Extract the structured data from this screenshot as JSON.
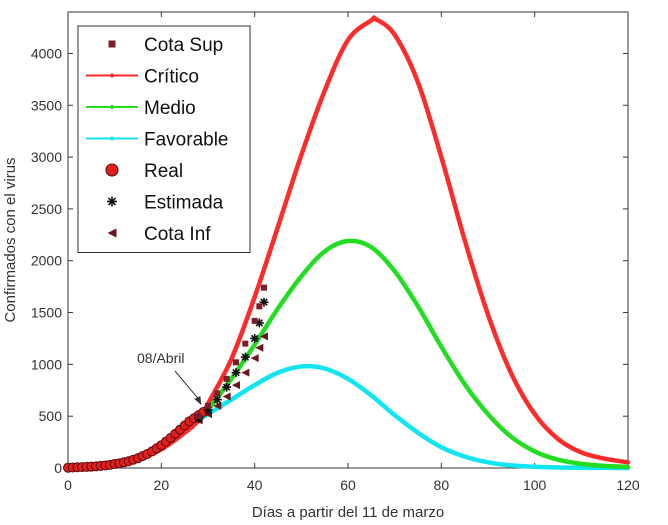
{
  "chart_data": {
    "type": "line",
    "title": "",
    "xlabel": "Días a partir del 11 de marzo",
    "ylabel": "Confirmados con el virus",
    "xlim": [
      0,
      120
    ],
    "ylim": [
      0,
      4400
    ],
    "x_ticks": [
      0,
      20,
      40,
      60,
      80,
      100,
      120
    ],
    "y_ticks": [
      0,
      500,
      1000,
      1500,
      2000,
      2500,
      3000,
      3500,
      4000
    ],
    "grid": false,
    "legend_position": "top-left",
    "legend": [
      {
        "label": "Cota Sup",
        "marker": "square",
        "color": "#7a1f2b"
      },
      {
        "label": "Crítico",
        "marker": "line",
        "color": "#ff2b2b"
      },
      {
        "label": "Medio",
        "marker": "line",
        "color": "#22dd22"
      },
      {
        "label": "Favorable",
        "marker": "line",
        "color": "#11e5ef"
      },
      {
        "label": "Real",
        "marker": "circle",
        "color": "#e02020"
      },
      {
        "label": "Estimada",
        "marker": "star",
        "color": "#111111"
      },
      {
        "label": "Cota Inf",
        "marker": "triangle-left",
        "color": "#6a1520"
      }
    ],
    "series": [
      {
        "name": "Crítico",
        "color": "#ff2b2b",
        "x": [
          0,
          5,
          10,
          15,
          20,
          25,
          28,
          30,
          35,
          40,
          45,
          50,
          55,
          60,
          65,
          66,
          70,
          75,
          80,
          85,
          90,
          95,
          100,
          105,
          110,
          115,
          120
        ],
        "y": [
          5,
          15,
          40,
          90,
          180,
          340,
          460,
          620,
          1050,
          1650,
          2330,
          3020,
          3640,
          4130,
          4320,
          4330,
          4180,
          3720,
          3000,
          2200,
          1480,
          910,
          520,
          280,
          150,
          90,
          55
        ]
      },
      {
        "name": "Medio",
        "color": "#22dd22",
        "x": [
          28,
          30,
          35,
          40,
          45,
          50,
          55,
          60,
          65,
          70,
          75,
          80,
          85,
          90,
          95,
          100,
          105,
          110,
          115,
          120
        ],
        "y": [
          460,
          560,
          860,
          1190,
          1540,
          1850,
          2090,
          2190,
          2130,
          1900,
          1560,
          1170,
          810,
          520,
          300,
          160,
          80,
          40,
          20,
          10
        ]
      },
      {
        "name": "Favorable",
        "color": "#11e5ef",
        "x": [
          28,
          30,
          35,
          40,
          45,
          50,
          55,
          60,
          65,
          70,
          75,
          80,
          85,
          90,
          95,
          100,
          105,
          110,
          115,
          120
        ],
        "y": [
          460,
          520,
          660,
          800,
          920,
          980,
          960,
          860,
          700,
          510,
          340,
          200,
          110,
          55,
          25,
          12,
          5,
          2,
          1,
          0
        ]
      },
      {
        "name": "Real",
        "color": "#e02020",
        "x": [
          0,
          1,
          2,
          3,
          4,
          5,
          6,
          7,
          8,
          9,
          10,
          11,
          12,
          13,
          14,
          15,
          16,
          17,
          18,
          19,
          20,
          21,
          22,
          23,
          24,
          25,
          26,
          27,
          28,
          29
        ],
        "y": [
          3,
          5,
          7,
          9,
          11,
          13,
          16,
          20,
          24,
          30,
          38,
          45,
          55,
          65,
          80,
          95,
          115,
          135,
          160,
          190,
          220,
          255,
          290,
          330,
          370,
          410,
          450,
          480,
          510,
          540
        ]
      },
      {
        "name": "Cota Sup",
        "color": "#7a1f2b",
        "x": [
          28,
          30,
          32,
          34,
          36,
          38,
          40,
          41,
          42
        ],
        "y": [
          500,
          600,
          720,
          860,
          1020,
          1200,
          1420,
          1560,
          1740
        ]
      },
      {
        "name": "Estimada",
        "color": "#111111",
        "x": [
          28,
          30,
          32,
          34,
          36,
          38,
          40,
          41,
          42
        ],
        "y": [
          480,
          560,
          660,
          780,
          920,
          1070,
          1250,
          1400,
          1600
        ]
      },
      {
        "name": "Cota Inf",
        "color": "#6a1520",
        "x": [
          28,
          30,
          32,
          34,
          36,
          38,
          40,
          41,
          42
        ],
        "y": [
          460,
          520,
          600,
          690,
          800,
          920,
          1060,
          1160,
          1270
        ]
      }
    ],
    "annotations": [
      {
        "text": "08/Abril",
        "x": 29,
        "y": 560
      }
    ]
  }
}
